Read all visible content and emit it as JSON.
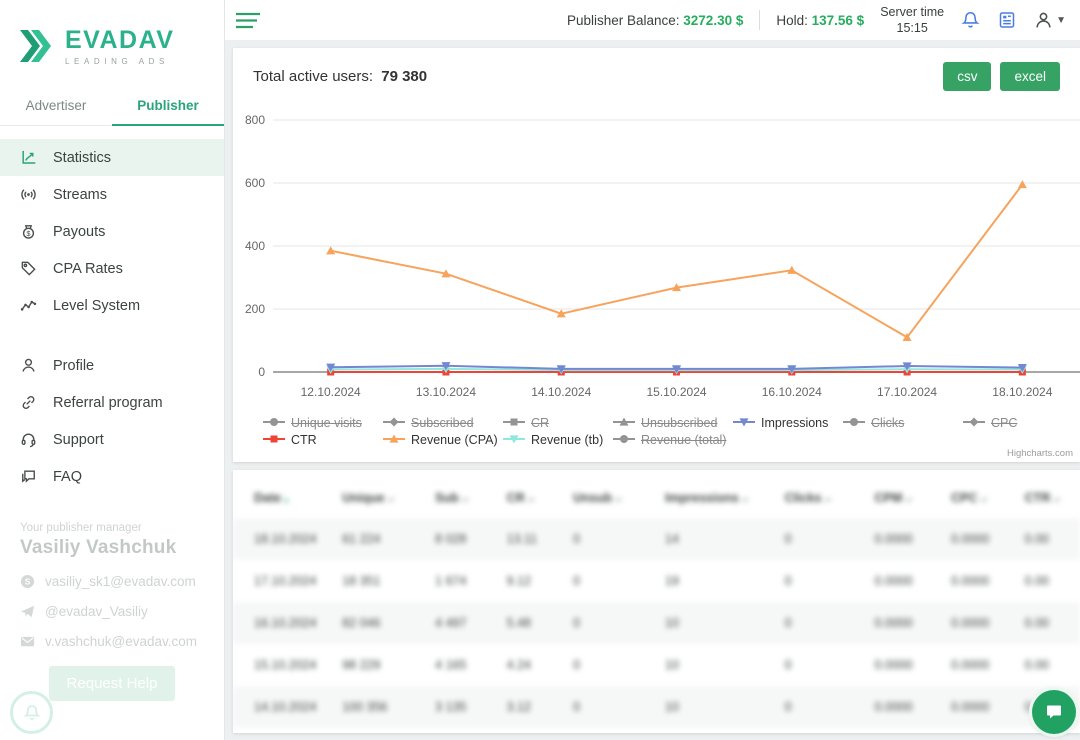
{
  "colors": {
    "brand_teal": "#2bb28c",
    "accent_tab": "#2aa47a",
    "accent_green": "#36a365",
    "balance_green": "#27ad5f",
    "sidebar_active_bg": "#e9f4ee",
    "icon_blue": "#4a7de0"
  },
  "sidebar": {
    "brand": "EVADAV",
    "tagline": "LEADING ADS",
    "tabs": [
      {
        "label": "Advertiser",
        "active": false
      },
      {
        "label": "Publisher",
        "active": true
      }
    ],
    "nav": [
      {
        "label": "Statistics",
        "icon": "statistics",
        "active": true
      },
      {
        "label": "Streams",
        "icon": "streams",
        "active": false
      },
      {
        "label": "Payouts",
        "icon": "payouts",
        "active": false
      },
      {
        "label": "CPA Rates",
        "icon": "cpa-rates",
        "active": false
      },
      {
        "label": "Level System",
        "icon": "level-system",
        "active": false
      }
    ],
    "nav_secondary": [
      {
        "label": "Profile",
        "icon": "profile",
        "active": false
      },
      {
        "label": "Referral program",
        "icon": "referral",
        "active": false
      },
      {
        "label": "Support",
        "icon": "support",
        "active": false
      },
      {
        "label": "FAQ",
        "icon": "faq",
        "active": false
      }
    ],
    "manager": {
      "caption": "Your publisher manager",
      "name": "Vasiliy Vashchuk",
      "contacts": [
        {
          "type": "skype",
          "value": "vasiliy_sk1@evadav.com"
        },
        {
          "type": "telegram",
          "value": "@evadav_Vasiliy"
        },
        {
          "type": "email",
          "value": "v.vashchuk@evadav.com"
        }
      ],
      "request_help_label": "Request Help"
    }
  },
  "topbar": {
    "balance_label": "Publisher Balance:",
    "balance_value": "3272.30 $",
    "hold_label": "Hold:",
    "hold_value": "137.56 $",
    "server_time_label": "Server time",
    "server_time_value": "15:15"
  },
  "stats": {
    "total_users_label": "Total active users:",
    "total_users_value": "79 380",
    "export_csv_label": "csv",
    "export_excel_label": "excel",
    "chart_credit": "Highcharts.com"
  },
  "chart_data": {
    "type": "line",
    "categories": [
      "12.10.2024",
      "13.10.2024",
      "14.10.2024",
      "15.10.2024",
      "16.10.2024",
      "17.10.2024",
      "18.10.2024"
    ],
    "ylim": [
      0,
      800
    ],
    "yticks": [
      0,
      200,
      400,
      600,
      800
    ],
    "grid": true,
    "legend_position": "bottom",
    "series": [
      {
        "name": "Unique visits",
        "marker": "circle",
        "enabled": false,
        "color": "#7cb5ec"
      },
      {
        "name": "Subscribed",
        "marker": "diamond",
        "enabled": false,
        "color": "#434348"
      },
      {
        "name": "CR",
        "marker": "square",
        "enabled": false,
        "color": "#90ed7d"
      },
      {
        "name": "Unsubscribed",
        "marker": "triangle-up",
        "enabled": false,
        "color": "#f15c80"
      },
      {
        "name": "Impressions",
        "marker": "triangle-down",
        "enabled": true,
        "color": "#7488d1",
        "values": [
          15,
          20,
          10,
          10,
          10,
          19,
          14
        ]
      },
      {
        "name": "Clicks",
        "marker": "circle",
        "enabled": false,
        "color": "#e4d354"
      },
      {
        "name": "CPC",
        "marker": "diamond",
        "enabled": false,
        "color": "#2b908f"
      },
      {
        "name": "CTR",
        "marker": "square",
        "enabled": true,
        "color": "#ef4337",
        "values": [
          0,
          0,
          0,
          0,
          0,
          0,
          0
        ]
      },
      {
        "name": "Revenue (CPA)",
        "marker": "triangle-up",
        "enabled": true,
        "color": "#f7a35c",
        "values": [
          385,
          312,
          185,
          268,
          323,
          110,
          595
        ]
      },
      {
        "name": "Revenue (tb)",
        "marker": "triangle-down",
        "enabled": true,
        "color": "#8fe8df",
        "values": [
          8,
          10,
          6,
          6,
          6,
          9,
          8
        ]
      },
      {
        "name": "Revenue (total)",
        "marker": "circle",
        "enabled": false,
        "color": "#91e8e1"
      }
    ]
  },
  "table": {
    "columns": [
      {
        "label": "Date",
        "sorted": true
      },
      {
        "label": "Unique",
        "sorted": false
      },
      {
        "label": "Sub",
        "sorted": false
      },
      {
        "label": "CR",
        "sorted": false
      },
      {
        "label": "Unsub",
        "sorted": false
      },
      {
        "label": "Impressions",
        "sorted": false
      },
      {
        "label": "Clicks",
        "sorted": false
      },
      {
        "label": "CPM",
        "sorted": false
      },
      {
        "label": "CPC",
        "sorted": false
      },
      {
        "label": "CTR",
        "sorted": false
      }
    ],
    "rows": [
      [
        "18.10.2024",
        "61 224",
        "8 028",
        "13.11",
        "0",
        "14",
        "0",
        "0.0000",
        "0.0000",
        "0.00"
      ],
      [
        "17.10.2024",
        "18 351",
        "1 674",
        "9.12",
        "0",
        "19",
        "0",
        "0.0000",
        "0.0000",
        "0.00"
      ],
      [
        "16.10.2024",
        "82 046",
        "4 497",
        "5.48",
        "0",
        "10",
        "0",
        "0.0000",
        "0.0000",
        "0.00"
      ],
      [
        "15.10.2024",
        "98 229",
        "4 165",
        "4.24",
        "0",
        "10",
        "0",
        "0.0000",
        "0.0000",
        "0.00"
      ],
      [
        "14.10.2024",
        "100 356",
        "3 135",
        "3.12",
        "0",
        "10",
        "0",
        "0.0000",
        "0.0000",
        "0.00"
      ]
    ]
  }
}
